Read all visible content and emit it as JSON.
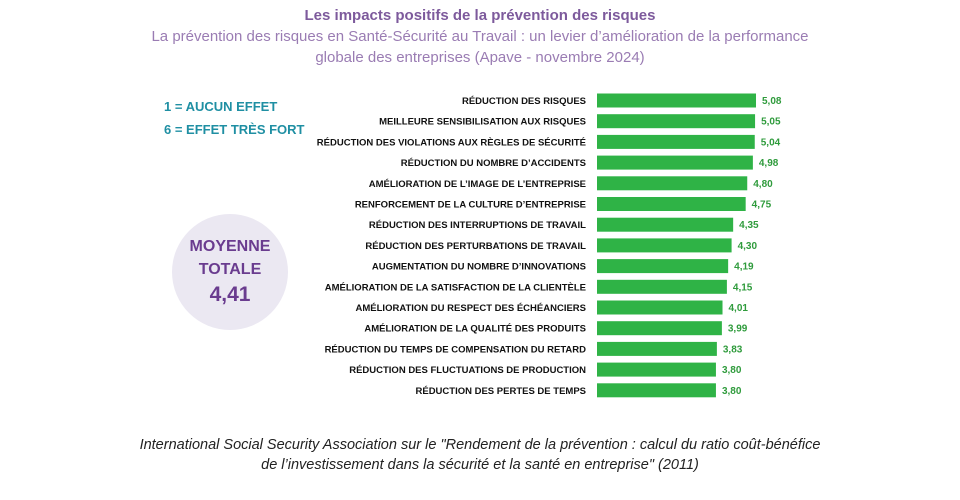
{
  "header": {
    "title": "Les impacts positifs de la prévention des risques",
    "subtitle_line1": "La prévention des risques en Santé-Sécurité au Travail : un levier d’amélioration de la performance",
    "subtitle_line2": "globale des entreprises (Apave - novembre 2024)"
  },
  "scale": {
    "min_label": "1 = AUCUN EFFET",
    "max_label": "6 = EFFET TRÈS FORT"
  },
  "average": {
    "line1": "MOYENNE",
    "line2": "TOTALE",
    "value": "4,41"
  },
  "colors": {
    "bar": "#2fb346",
    "value_text": "#2f9b3c",
    "label_text": "#111111",
    "title": "#7d5a9c",
    "subtitle": "#9a7cb3",
    "scale_text": "#1f8fa3",
    "average_text": "#6a3c8f",
    "average_bg": "#ebe8f2"
  },
  "chart_data": {
    "type": "bar",
    "orientation": "horizontal",
    "xlim": [
      0,
      6
    ],
    "categories": [
      "RÉDUCTION DES RISQUES",
      "MEILLEURE SENSIBILISATION AUX RISQUES",
      "RÉDUCTION DES VIOLATIONS AUX RÈGLES DE SÉCURITÉ",
      "RÉDUCTION DU NOMBRE D’ACCIDENTS",
      "AMÉLIORATION DE L’IMAGE DE L’ENTREPRISE",
      "RENFORCEMENT DE LA CULTURE D’ENTREPRISE",
      "RÉDUCTION DES INTERRUPTIONS DE TRAVAIL",
      "RÉDUCTION DES PERTURBATIONS DE TRAVAIL",
      "AUGMENTATION DU NOMBRE D’INNOVATIONS",
      "AMÉLIORATION DE LA SATISFACTION DE LA CLIENTÈLE",
      "AMÉLIORATION DU RESPECT DES ÉCHÉANCIERS",
      "AMÉLIORATION DE LA QUALITÉ DES PRODUITS",
      "RÉDUCTION DU TEMPS DE COMPENSATION DU RETARD",
      "RÉDUCTION DES FLUCTUATIONS DE PRODUCTION",
      "RÉDUCTION DES PERTES DE TEMPS"
    ],
    "values": [
      5.08,
      5.05,
      5.04,
      4.98,
      4.8,
      4.75,
      4.35,
      4.3,
      4.19,
      4.15,
      4.01,
      3.99,
      3.83,
      3.8,
      3.8
    ],
    "value_labels": [
      "5,08",
      "5,05",
      "5,04",
      "4,98",
      "4,80",
      "4,75",
      "4,35",
      "4,30",
      "4,19",
      "4,15",
      "4,01",
      "3,99",
      "3,83",
      "3,80",
      "3,80"
    ]
  },
  "footer": {
    "line1": "International Social Security Association sur le \"Rendement de la prévention : calcul du ratio coût-bénéfice",
    "line2": "de l’investissement dans la sécurité et la santé en entreprise\" (2011)"
  }
}
